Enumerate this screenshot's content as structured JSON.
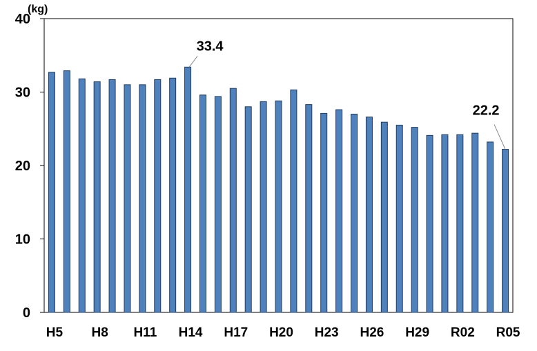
{
  "chart_data": {
    "type": "bar",
    "y_unit": "(kg)",
    "categories": [
      "H5",
      null,
      null,
      "H8",
      null,
      null,
      "H11",
      null,
      null,
      "H14",
      null,
      null,
      "H17",
      null,
      null,
      "H20",
      null,
      null,
      "H23",
      null,
      null,
      "H26",
      null,
      null,
      "H29",
      null,
      null,
      "R02",
      null,
      null,
      "R05"
    ],
    "values": [
      32.7,
      32.9,
      31.8,
      31.4,
      31.7,
      31.0,
      31.0,
      31.7,
      31.9,
      33.4,
      29.6,
      29.4,
      30.5,
      28.0,
      28.7,
      28.8,
      30.3,
      28.3,
      27.1,
      27.6,
      27.0,
      26.6,
      25.9,
      25.5,
      25.2,
      24.1,
      24.2,
      24.2,
      24.4,
      23.2,
      22.2
    ],
    "labeled_points": [
      9,
      30
    ],
    "color": "#4f81bd",
    "ylim": [
      0,
      40
    ],
    "yticks": [
      0,
      10,
      20,
      30,
      40
    ],
    "grid": false
  }
}
